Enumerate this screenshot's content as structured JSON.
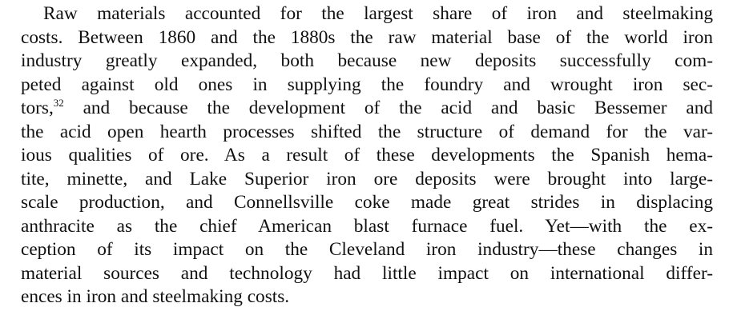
{
  "paragraph": {
    "lines": [
      "Raw materials accounted for the largest share of iron and steelmaking",
      "costs. Between 1860 and the 1880s the raw material base of the world iron",
      "industry greatly expanded, both because new deposits successfully com-",
      "peted against old ones in supplying the foundry and wrought iron sec-",
      "tors,",
      "32",
      " and because the development of the acid and basic Bessemer and",
      "the acid open hearth processes shifted the structure of demand for the var-",
      "ious qualities of ore. As a result of these developments the Spanish hema-",
      "tite, minette, and Lake Superior iron ore deposits were brought into large-",
      "scale production, and Connellsville coke made great strides in displacing",
      "anthracite as the chief American blast furnace fuel. Yet—with the ex-",
      "ception of its impact on the Cleveland iron industry—these changes in",
      "material sources and technology had little impact on international differ-",
      "ences in iron and steelmaking costs."
    ]
  }
}
